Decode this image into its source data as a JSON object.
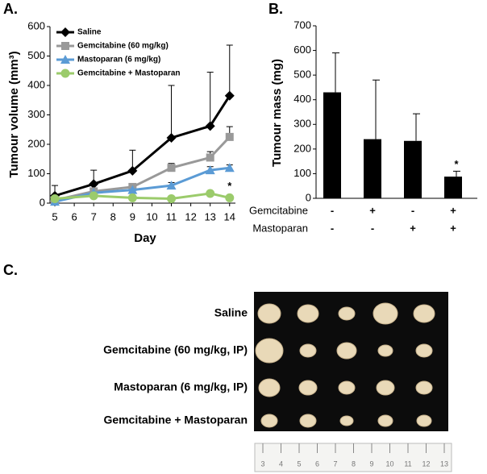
{
  "chart_data": [
    {
      "type": "line",
      "panel_label": "A.",
      "x_label": "Day",
      "y_label": "Tumour volume (mm³)",
      "x": [
        5,
        7,
        9,
        11,
        13,
        14
      ],
      "xlim": [
        4.75,
        14.3
      ],
      "xticks": [
        5,
        6,
        7,
        8,
        9,
        10,
        11,
        12,
        13,
        14
      ],
      "ylim": [
        0,
        600
      ],
      "yticks": [
        0,
        100,
        200,
        300,
        400,
        500,
        600
      ],
      "series": [
        {
          "name": "Saline",
          "color": "#000000",
          "marker": "diamond",
          "values": [
            25,
            65,
            110,
            222,
            262,
            365
          ],
          "errors": [
            35,
            47,
            70,
            178,
            183,
            172
          ]
        },
        {
          "name": "Gemcitabine (60 mg/kg)",
          "color": "#999999",
          "marker": "square",
          "values": [
            10,
            40,
            55,
            120,
            155,
            225
          ],
          "errors": [
            8,
            10,
            12,
            15,
            20,
            35
          ]
        },
        {
          "name": "Mastoparan (6 mg/kg)",
          "color": "#5b9bd5",
          "marker": "triangle",
          "values": [
            5,
            35,
            45,
            60,
            112,
            120
          ],
          "errors": [
            5,
            8,
            8,
            10,
            12,
            10
          ]
        },
        {
          "name": "Gemcitabine + Mastoparan",
          "color": "#9bcb6b",
          "marker": "circle",
          "values": [
            15,
            25,
            18,
            15,
            33,
            18
          ],
          "errors": [
            5,
            6,
            5,
            5,
            6,
            5
          ]
        }
      ],
      "annotation": "*"
    },
    {
      "type": "bar",
      "panel_label": "B.",
      "y_label": "Tumour mass (mg)",
      "color": "#000000",
      "values": [
        430,
        240,
        233,
        88
      ],
      "errors": [
        160,
        240,
        110,
        22
      ],
      "ylim": [
        0,
        700
      ],
      "yticks": [
        0,
        100,
        200,
        300,
        400,
        500,
        600,
        700
      ],
      "treatment_rows": [
        {
          "name": "Gemcitabine",
          "signs": [
            "-",
            "+",
            "-",
            "+"
          ]
        },
        {
          "name": "Mastoparan",
          "signs": [
            "-",
            "-",
            "+",
            "+"
          ]
        }
      ],
      "annotation": "*"
    }
  ],
  "panel_c": {
    "panel_label": "C.",
    "rows": [
      "Saline",
      "Gemcitabine (60 mg/kg, IP)",
      "Mastoparan (6 mg/kg, IP)",
      "Gemcitabine + Mastoparan"
    ],
    "ruler_labels": [
      "3",
      "4",
      "5",
      "6",
      "7",
      "8",
      "9",
      "10",
      "11",
      "12",
      "13"
    ]
  }
}
